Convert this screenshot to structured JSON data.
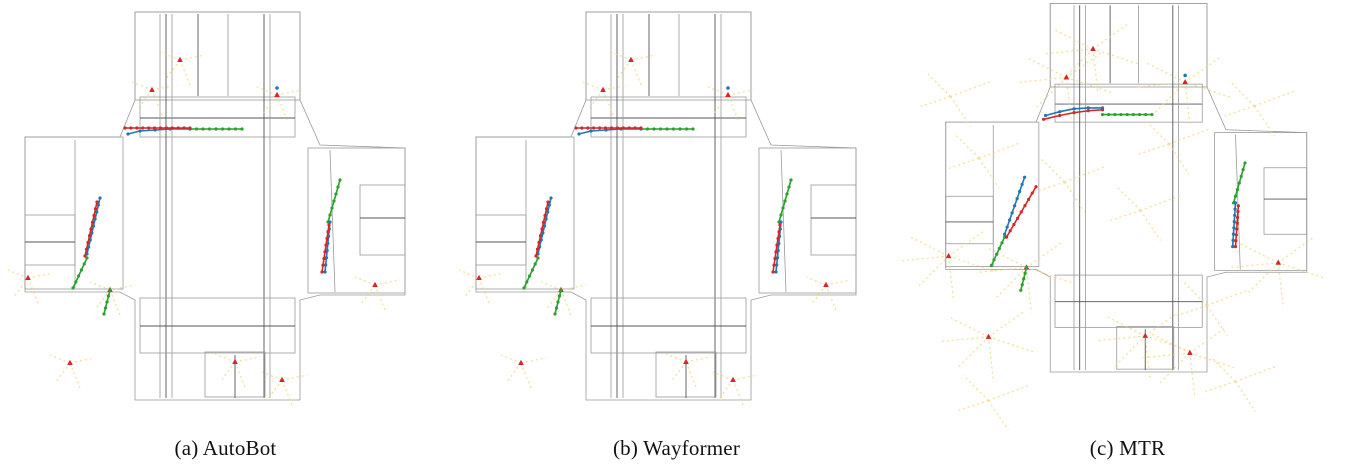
{
  "figure": {
    "panels": [
      {
        "id": "a",
        "caption": "(a)  AutoBot"
      },
      {
        "id": "b",
        "caption": "(b)  Wayformer"
      },
      {
        "id": "c",
        "caption": "(c)  MTR"
      }
    ]
  },
  "colors": {
    "road": "#9a9a9a",
    "lane_divider": "#555555",
    "ground_truth": "#2ca02c",
    "prediction_blue": "#1f77b4",
    "prediction_red": "#d62728",
    "agent_marker": "#d62728",
    "faint_traj": "#f5d27a"
  }
}
